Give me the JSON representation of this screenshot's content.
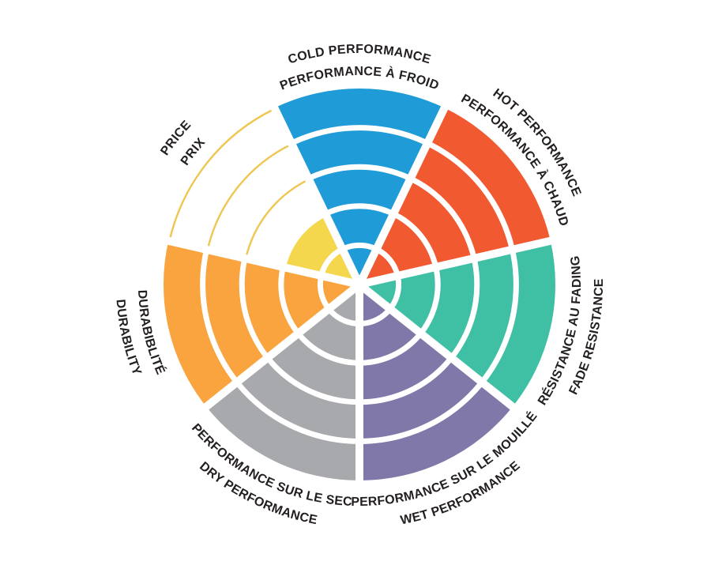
{
  "chart_data": {
    "type": "polar-sector-rating",
    "title": "",
    "rings": 5,
    "max_value": 5,
    "start_center_angle_deg": -90,
    "direction": "clockwise",
    "background": "#FFFFFF",
    "separator_color": "#FFFFFF",
    "label_color": "#231F20",
    "categories": [
      {
        "id": "cold-performance",
        "label_en": "COLD PERFORMANCE",
        "label_fr": "PERFORMANCE À FROID",
        "value": 5,
        "color": "#1F9CD8",
        "label_side": "top"
      },
      {
        "id": "hot-performance",
        "label_en": "HOT PERFORMANCE",
        "label_fr": "PERFORMANCE À CHAUD",
        "value": 5,
        "color": "#F15A31",
        "label_side": "top"
      },
      {
        "id": "fade-resistance",
        "label_en": "FADE RESISTANCE",
        "label_fr": "RÉSISTANCE AU FADING",
        "value": 5,
        "color": "#3FC0A4",
        "label_side": "bottom"
      },
      {
        "id": "wet-performance",
        "label_en": "WET PERFORMANCE",
        "label_fr": "PERFORMANCE SUR LE MOUILLÉ",
        "value": 5,
        "color": "#8078A8",
        "label_side": "bottom"
      },
      {
        "id": "dry-performance",
        "label_en": "DRY PERFORMANCE",
        "label_fr": "PERFORMANCE SUR LE SEC",
        "value": 5,
        "color": "#A7A9AC",
        "label_side": "bottom"
      },
      {
        "id": "durability",
        "label_en": "DURABILITY",
        "label_fr": "DURABIBLITÉ",
        "value": 5,
        "color": "#F9A43E",
        "label_side": "bottom"
      },
      {
        "id": "price",
        "label_en": "PRICE",
        "label_fr": "PRIX",
        "value": 2,
        "color": "#F5D74E",
        "outline_color": "#EFC64F",
        "label_side": "top"
      }
    ]
  }
}
